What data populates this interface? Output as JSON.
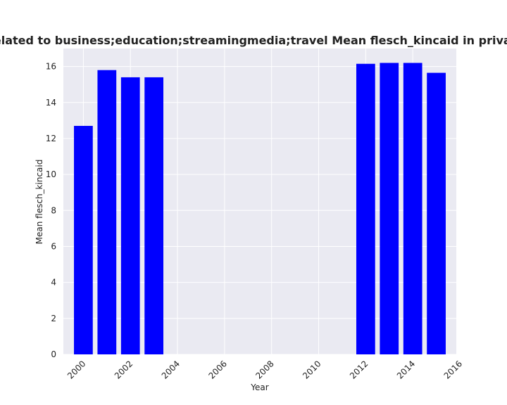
{
  "chart_data": {
    "type": "bar",
    "title": "Categories are related to business;education;streamingmedia;travel Mean flesch_kincaid in privacy policies by year",
    "xlabel": "Year",
    "ylabel": "Mean flesch_kincaid",
    "x": [
      2000,
      2001,
      2002,
      2003,
      2012,
      2013,
      2014,
      2015
    ],
    "values": [
      12.7,
      15.8,
      15.4,
      15.4,
      16.15,
      16.2,
      16.2,
      15.65
    ],
    "xlim": [
      1999.15,
      2015.85
    ],
    "ylim": [
      0,
      17
    ],
    "xticks": [
      "2000",
      "2002",
      "2004",
      "2006",
      "2008",
      "2010",
      "2012",
      "2014",
      "2016"
    ],
    "yticks": [
      "0",
      "2",
      "4",
      "6",
      "8",
      "10",
      "12",
      "14",
      "16"
    ],
    "bar_color": "#0000ff",
    "plot_background": "#eaeaf2",
    "grid": true,
    "legend": false
  }
}
